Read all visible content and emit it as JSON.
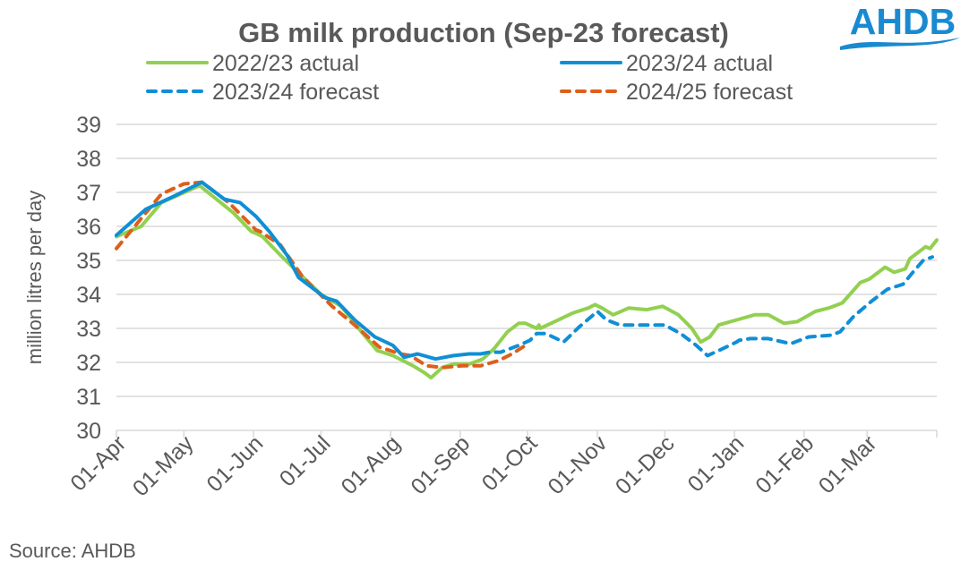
{
  "logo": {
    "text": "AHDB",
    "color": "#1a8ad0"
  },
  "source": "Source: AHDB",
  "chart_data": {
    "type": "line",
    "title": "GB milk production (Sep-23 forecast)",
    "xlabel": "",
    "ylabel": "million litres per day",
    "ylim": [
      30,
      39
    ],
    "yticks": [
      "30",
      "31",
      "32",
      "33",
      "34",
      "35",
      "36",
      "37",
      "38",
      "39"
    ],
    "x_unit": "day of season (0 = 01-Apr)",
    "xlim": [
      0,
      365
    ],
    "xticks": [
      {
        "label": "01-Apr",
        "day": 0
      },
      {
        "label": "01-May",
        "day": 30
      },
      {
        "label": "01-Jun",
        "day": 61
      },
      {
        "label": "01-Jul",
        "day": 91
      },
      {
        "label": "01-Aug",
        "day": 122
      },
      {
        "label": "01-Sep",
        "day": 153
      },
      {
        "label": "01-Oct",
        "day": 183
      },
      {
        "label": "01-Nov",
        "day": 214
      },
      {
        "label": "01-Dec",
        "day": 244
      },
      {
        "label": "01-Jan",
        "day": 275
      },
      {
        "label": "01-Feb",
        "day": 306
      },
      {
        "label": "01-Mar",
        "day": 334
      }
    ],
    "grid": true,
    "legend_position": "top",
    "series": [
      {
        "name": "2022/23 actual",
        "color": "#92d050",
        "style": "solid",
        "points": [
          [
            0,
            35.7
          ],
          [
            11,
            36.0
          ],
          [
            20,
            36.7
          ],
          [
            37,
            37.2
          ],
          [
            52,
            36.4
          ],
          [
            62,
            35.8
          ],
          [
            60,
            35.85
          ],
          [
            65,
            35.7
          ],
          [
            73,
            35.15
          ],
          [
            80,
            34.7
          ],
          [
            91,
            34.0
          ],
          [
            100,
            33.65
          ],
          [
            109,
            32.9
          ],
          [
            116,
            32.35
          ],
          [
            123,
            32.2
          ],
          [
            132,
            31.9
          ],
          [
            137,
            31.7
          ],
          [
            140,
            31.55
          ],
          [
            145,
            31.85
          ],
          [
            150,
            31.95
          ],
          [
            157,
            31.95
          ],
          [
            163,
            32.1
          ],
          [
            168,
            32.4
          ],
          [
            174,
            32.9
          ],
          [
            179,
            33.15
          ],
          [
            182,
            33.15
          ],
          [
            187,
            33.0
          ],
          [
            188,
            33.1
          ],
          [
            188.5,
            33.0
          ],
          [
            195,
            33.2
          ],
          [
            203,
            33.45
          ],
          [
            210,
            33.6
          ],
          [
            213,
            33.7
          ],
          [
            216,
            33.6
          ],
          [
            221,
            33.4
          ],
          [
            228,
            33.6
          ],
          [
            236,
            33.55
          ],
          [
            243,
            33.65
          ],
          [
            250,
            33.4
          ],
          [
            256,
            33.0
          ],
          [
            260,
            32.6
          ],
          [
            264,
            32.75
          ],
          [
            268,
            33.1
          ],
          [
            276,
            33.25
          ],
          [
            284,
            33.4
          ],
          [
            290,
            33.4
          ],
          [
            297,
            33.15
          ],
          [
            303,
            33.2
          ],
          [
            311,
            33.5
          ],
          [
            317,
            33.6
          ],
          [
            323,
            33.75
          ],
          [
            331,
            34.35
          ],
          [
            335,
            34.45
          ],
          [
            342,
            34.8
          ],
          [
            346,
            34.65
          ],
          [
            351,
            34.75
          ],
          [
            353,
            35.05
          ],
          [
            360,
            35.4
          ],
          [
            362,
            35.35
          ],
          [
            365,
            35.6
          ]
        ]
      },
      {
        "name": "2023/24 actual",
        "color": "#0f8fd6",
        "style": "solid",
        "points": [
          [
            0,
            35.74
          ],
          [
            13,
            36.5
          ],
          [
            26,
            36.9
          ],
          [
            38,
            37.3
          ],
          [
            48,
            36.8
          ],
          [
            55,
            36.7
          ],
          [
            62,
            36.3
          ],
          [
            68,
            35.85
          ],
          [
            76,
            35.15
          ],
          [
            81,
            34.5
          ],
          [
            93,
            33.9
          ],
          [
            98,
            33.8
          ],
          [
            106,
            33.25
          ],
          [
            115,
            32.75
          ],
          [
            123,
            32.5
          ],
          [
            128,
            32.15
          ],
          [
            134,
            32.25
          ],
          [
            142,
            32.1
          ],
          [
            150,
            32.2
          ],
          [
            157,
            32.25
          ],
          [
            162,
            32.25
          ]
        ]
      },
      {
        "name": "2023/24 forecast",
        "color": "#0f8fd6",
        "style": "dashed",
        "points": [
          [
            162,
            32.25
          ],
          [
            166,
            32.3
          ],
          [
            171,
            32.3
          ],
          [
            179,
            32.5
          ],
          [
            187,
            32.85
          ],
          [
            184,
            32.65
          ],
          [
            191,
            32.85
          ],
          [
            199,
            32.6
          ],
          [
            206,
            33.05
          ],
          [
            214,
            33.5
          ],
          [
            218,
            33.25
          ],
          [
            224,
            33.1
          ],
          [
            234,
            33.1
          ],
          [
            244,
            33.1
          ],
          [
            251,
            32.85
          ],
          [
            258,
            32.5
          ],
          [
            263,
            32.2
          ],
          [
            268,
            32.35
          ],
          [
            276,
            32.6
          ],
          [
            277,
            32.65
          ],
          [
            282,
            32.7
          ],
          [
            290,
            32.7
          ],
          [
            300,
            32.55
          ],
          [
            308,
            32.75
          ],
          [
            318,
            32.8
          ],
          [
            322,
            32.9
          ],
          [
            328,
            33.35
          ],
          [
            336,
            33.8
          ],
          [
            343,
            34.15
          ],
          [
            350,
            34.3
          ],
          [
            355,
            34.7
          ],
          [
            359,
            35.0
          ],
          [
            363,
            35.1
          ]
        ]
      },
      {
        "name": "2024/25 forecast",
        "color": "#dd5f1a",
        "style": "dashed",
        "points": [
          [
            0,
            35.35
          ],
          [
            10,
            36.15
          ],
          [
            20,
            36.95
          ],
          [
            30,
            37.25
          ],
          [
            38,
            37.3
          ],
          [
            50,
            36.7
          ],
          [
            62,
            35.9
          ],
          [
            64,
            35.85
          ],
          [
            73,
            35.45
          ],
          [
            83,
            34.5
          ],
          [
            96,
            33.65
          ],
          [
            106,
            33.1
          ],
          [
            117,
            32.45
          ],
          [
            126,
            32.25
          ],
          [
            131,
            32.2
          ],
          [
            124,
            32.3
          ],
          [
            132,
            32.15
          ],
          [
            138,
            31.9
          ],
          [
            145,
            31.85
          ],
          [
            154,
            31.9
          ],
          [
            162,
            31.9
          ],
          [
            170,
            32.05
          ],
          [
            176,
            32.25
          ],
          [
            182,
            32.5
          ]
        ]
      }
    ]
  }
}
